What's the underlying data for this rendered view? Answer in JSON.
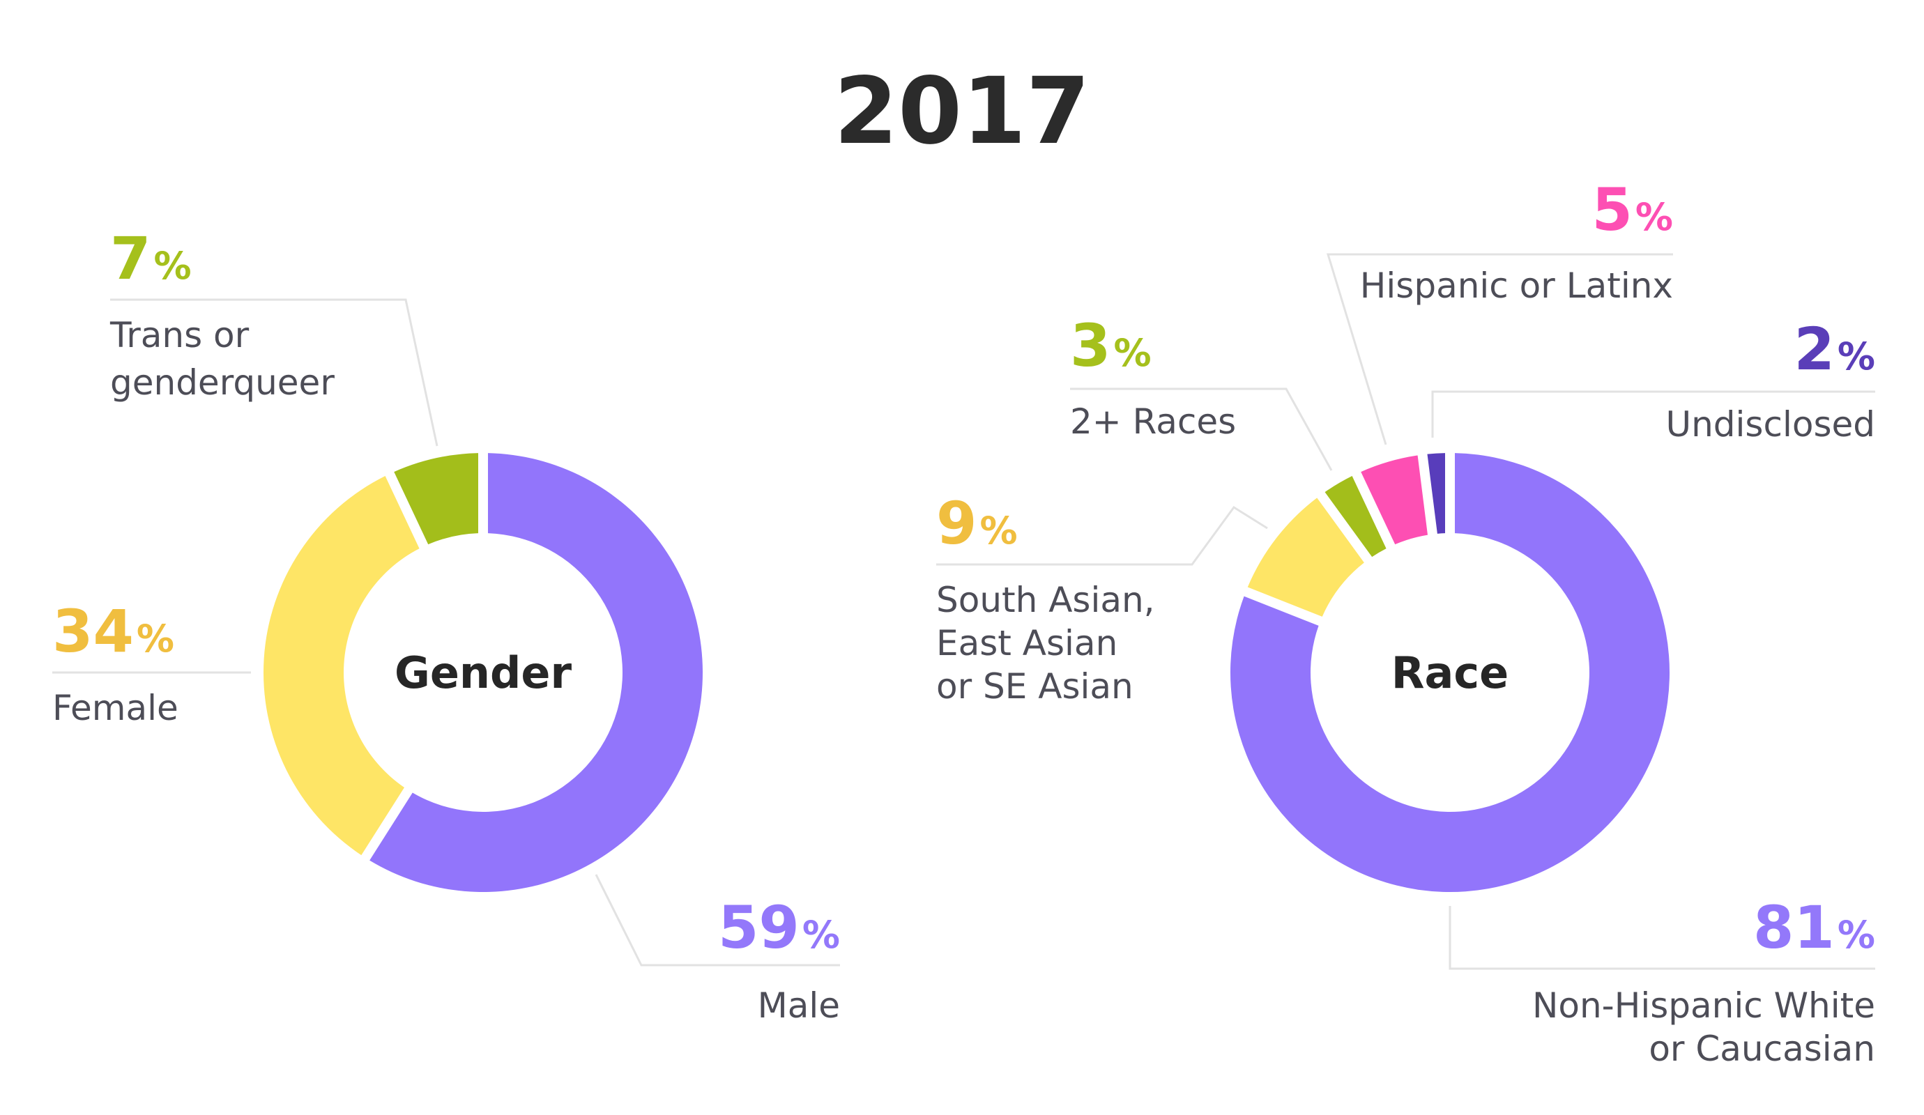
{
  "colors": {
    "purple": "#9275fb",
    "yellow": "#fee566",
    "lime": "#a3be1b",
    "pink": "#fd4fb3",
    "indigo": "#583dbb",
    "yellow_text": "#f0be3f",
    "lime_text": "#a5c01c",
    "purple_text": "#9378fa",
    "pink_text": "#fd4fb3",
    "indigo_text": "#5a3eb8"
  },
  "chart_data": {
    "type": "pie",
    "title": "2017",
    "charts": [
      {
        "center_label": "Gender",
        "slices": [
          {
            "label": "Male",
            "value": 59,
            "pct_text": "59",
            "label_lines": [
              "Male"
            ],
            "color": "#9275fb",
            "text_color": "#9378fa"
          },
          {
            "label": "Female",
            "value": 34,
            "pct_text": "34",
            "label_lines": [
              "Female"
            ],
            "color": "#fee566",
            "text_color": "#f0be3f"
          },
          {
            "label": "Trans or genderqueer",
            "value": 7,
            "pct_text": "7",
            "label_lines": [
              "Trans or",
              "genderqueer"
            ],
            "color": "#a3be1b",
            "text_color": "#a5c01c"
          }
        ]
      },
      {
        "center_label": "Race",
        "slices": [
          {
            "label": "Non-Hispanic White or Caucasian",
            "value": 81,
            "pct_text": "81",
            "label_lines": [
              "Non-Hispanic White",
              "or Caucasian"
            ],
            "color": "#9275fb",
            "text_color": "#9378fa"
          },
          {
            "label": "South Asian, East Asian or SE Asian",
            "value": 9,
            "pct_text": "9",
            "label_lines": [
              "South Asian,",
              "East Asian",
              "or SE Asian"
            ],
            "color": "#fee566",
            "text_color": "#f0be3f"
          },
          {
            "label": "2+ Races",
            "value": 3,
            "pct_text": "3",
            "label_lines": [
              "2+ Races"
            ],
            "color": "#a3be1b",
            "text_color": "#a5c01c"
          },
          {
            "label": "Hispanic or Latinx",
            "value": 5,
            "pct_text": "5",
            "label_lines": [
              "Hispanic or Latinx"
            ],
            "color": "#fd4fb3",
            "text_color": "#fd4fb3"
          },
          {
            "label": "Undisclosed",
            "value": 2,
            "pct_text": "2",
            "label_lines": [
              "Undisclosed"
            ],
            "color": "#583dbb",
            "text_color": "#5a3eb8"
          }
        ]
      }
    ],
    "percent_sign": "%"
  }
}
